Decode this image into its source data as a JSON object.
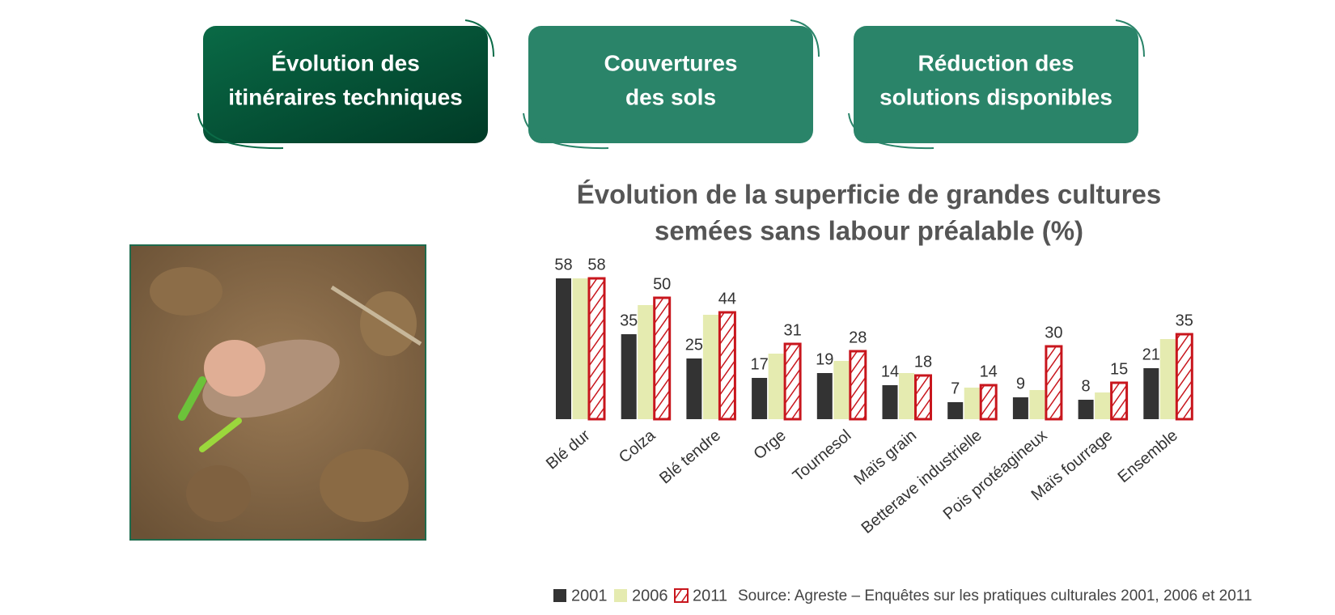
{
  "tabs": [
    {
      "lines": [
        "Évolution des",
        "itinéraires techniques"
      ]
    },
    {
      "lines": [
        "Couvertures",
        "des sols"
      ]
    },
    {
      "lines": [
        "Réduction des",
        "solutions disponibles"
      ]
    }
  ],
  "chart_data": {
    "type": "bar",
    "title": [
      "Évolution de la superficie de grandes cultures",
      "semées sans labour préalable (%)"
    ],
    "categories": [
      "Blé dur",
      "Colza",
      "Blé tendre",
      "Orge",
      "Tournesol",
      "Maïs grain",
      "Betterave industrielle",
      "Pois protéagineux",
      "Maïs fourrage",
      "Ensemble"
    ],
    "series": [
      {
        "name": "2001",
        "color": "#333333",
        "data_labels": true,
        "values": [
          58,
          35,
          25,
          17,
          19,
          14,
          7,
          9,
          8,
          21
        ]
      },
      {
        "name": "2006",
        "color": "#e5ebb0",
        "data_labels": false,
        "values": [
          58,
          47,
          43,
          27,
          24,
          19,
          13,
          12,
          11,
          33
        ]
      },
      {
        "name": "2011",
        "color": "#c8161d",
        "pattern": "hatch",
        "data_labels": true,
        "values": [
          58,
          50,
          44,
          31,
          28,
          18,
          14,
          30,
          15,
          35
        ]
      }
    ],
    "ylim": [
      0,
      60
    ],
    "source": "Source: Agreste – Enquêtes sur les pratiques culturales 2001, 2006 et 2011"
  }
}
